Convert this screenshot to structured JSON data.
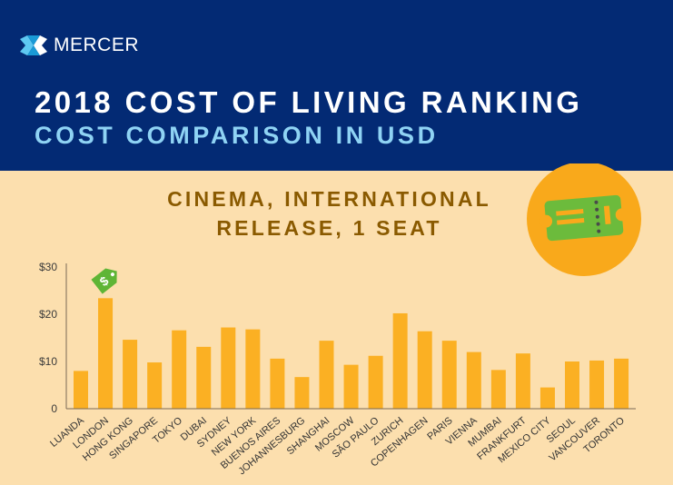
{
  "header": {
    "brand": "MERCER",
    "title": "2018 COST OF LIVING RANKING",
    "subtitle": "COST COMPARISON IN USD"
  },
  "colors": {
    "header_bg": "#032a74",
    "page_bg": "#fcdfae",
    "bar": "#fbb023",
    "title_text": "#8a5a00",
    "subtitle_text": "#8fd3f4",
    "price_tag": "#5fb536",
    "ticket_circle": "#f9a91b",
    "ticket": "#6cbb3c"
  },
  "icons": {
    "logo": "mercer-logo-icon",
    "highlight": "dollar-price-tag-icon",
    "topic": "cinema-ticket-icon"
  },
  "chart_data": {
    "type": "bar",
    "title": "CINEMA, INTERNATIONAL RELEASE, 1 SEAT",
    "title_lines": [
      "CINEMA, INTERNATIONAL",
      "RELEASE, 1 SEAT"
    ],
    "xlabel": "",
    "ylabel": "",
    "ylim": [
      0,
      30
    ],
    "yticks": [
      0,
      10,
      20,
      30
    ],
    "ytick_labels": [
      "0",
      "$10",
      "$20",
      "$30"
    ],
    "grid": false,
    "highlight": "LONDON",
    "categories": [
      "LUANDA",
      "LONDON",
      "HONG KONG",
      "SINGAPORE",
      "TOKYO",
      "DUBAI",
      "SYDNEY",
      "NEW YORK",
      "BUENOS AIRES",
      "JOHANNESBURG",
      "SHANGHAI",
      "MOSCOW",
      "SÃO PAULO",
      "ZURICH",
      "COPENHAGEN",
      "PARIS",
      "VIENNA",
      "MUMBAI",
      "FRANKFURT",
      "MEXICO CITY",
      "SEOUL",
      "VANCOUVER",
      "TORONTO"
    ],
    "values": [
      8.0,
      23.4,
      14.6,
      9.8,
      16.6,
      13.1,
      17.2,
      16.8,
      10.6,
      6.7,
      14.4,
      9.3,
      11.2,
      20.2,
      16.4,
      14.4,
      12.0,
      8.2,
      11.7,
      4.5,
      10.0,
      10.2,
      10.6
    ]
  }
}
